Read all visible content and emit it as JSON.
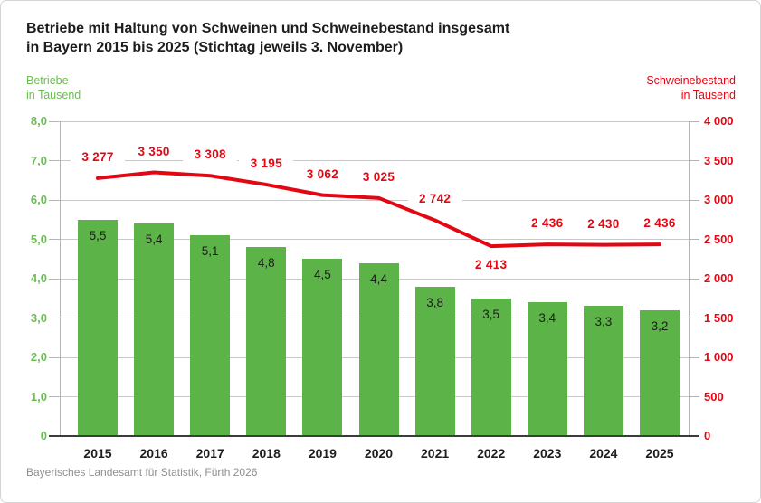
{
  "title": {
    "line1": "Betriebe mit Haltung von Schweinen und Schweinebestand insgesamt",
    "line2": "in Bayern 2015 bis 2025 (Stichtag jeweils 3. November)"
  },
  "left_axis": {
    "unit_line1": "Betriebe",
    "unit_line2": "in Tausend",
    "color": "#6cbd53",
    "tick_labels": [
      "8,0",
      "7,0",
      "6,0",
      "5,0",
      "4,0",
      "3,0",
      "2,0",
      "1,0",
      "0"
    ],
    "tick_values": [
      8,
      7,
      6,
      5,
      4,
      3,
      2,
      1,
      0
    ]
  },
  "right_axis": {
    "unit_line1": "Schweinebestand",
    "unit_line2": "in Tausend",
    "color": "#e30613",
    "tick_labels": [
      "4 000",
      "3 500",
      "3 000",
      "2 500",
      "2 000",
      "1 500",
      "1 000",
      "500",
      "0"
    ],
    "tick_values": [
      4000,
      3500,
      3000,
      2500,
      2000,
      1500,
      1000,
      500,
      0
    ]
  },
  "chart_data": {
    "type": "bar",
    "subtype": "bar-and-line-combo",
    "categories": [
      "2015",
      "2016",
      "2017",
      "2018",
      "2019",
      "2020",
      "2021",
      "2022",
      "2023",
      "2024",
      "2025"
    ],
    "series": [
      {
        "name": "Betriebe in Tausend",
        "type": "bar",
        "axis": "left",
        "color": "#5cb347",
        "values": [
          5.5,
          5.4,
          5.1,
          4.8,
          4.5,
          4.4,
          3.8,
          3.5,
          3.4,
          3.3,
          3.2
        ],
        "labels": [
          "5,5",
          "5,4",
          "5,1",
          "4,8",
          "4,5",
          "4,4",
          "3,8",
          "3,5",
          "3,4",
          "3,3",
          "3,2"
        ]
      },
      {
        "name": "Schweinebestand in Tausend",
        "type": "line",
        "axis": "right",
        "color": "#e30613",
        "values": [
          3277,
          3350,
          3308,
          3195,
          3062,
          3025,
          2742,
          2413,
          2436,
          2430,
          2436
        ],
        "labels": [
          "3 277",
          "3 350",
          "3 308",
          "3 195",
          "3 062",
          "3 025",
          "2 742",
          "2 413",
          "2 436",
          "2 430",
          "2 436"
        ],
        "label_side": [
          "above",
          "above",
          "above",
          "above",
          "above",
          "above",
          "above",
          "below",
          "above",
          "above",
          "above"
        ]
      }
    ],
    "left_ylim": [
      0,
      8
    ],
    "right_ylim": [
      0,
      4000
    ],
    "grid": true,
    "legend_position": "none"
  },
  "footer": {
    "source": "Bayerisches Landesamt für Statistik, Fürth 2026"
  }
}
